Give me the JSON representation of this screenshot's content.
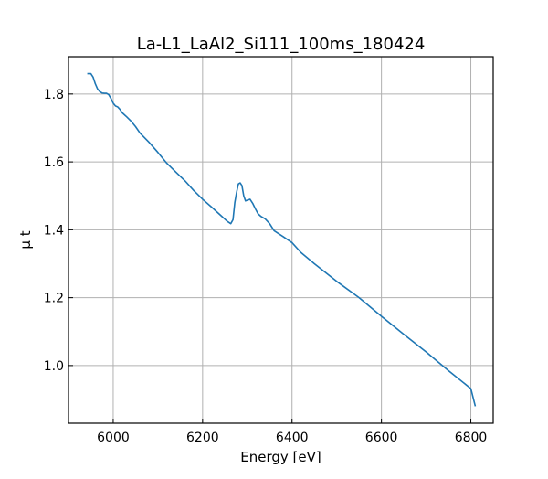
{
  "chart_data": {
    "type": "line",
    "title": "La-L1_LaAl2_Si111_100ms_180424",
    "xlabel": "Energy [eV]",
    "ylabel": "μ t",
    "xlim": [
      5900,
      6850
    ],
    "ylim": [
      0.83,
      1.91
    ],
    "xticks": [
      6000,
      6200,
      6400,
      6600,
      6800
    ],
    "yticks": [
      1.0,
      1.2,
      1.4,
      1.6,
      1.8
    ],
    "grid": true,
    "series": [
      {
        "color": "#1f77b4",
        "x": [
          5942,
          5950,
          5955,
          5960,
          5965,
          5970,
          5975,
          5980,
          5985,
          5990,
          5995,
          6000,
          6005,
          6010,
          6015,
          6020,
          6030,
          6040,
          6050,
          6060,
          6080,
          6100,
          6120,
          6140,
          6160,
          6180,
          6200,
          6220,
          6240,
          6255,
          6263,
          6268,
          6272,
          6276,
          6280,
          6284,
          6288,
          6292,
          6296,
          6300,
          6306,
          6312,
          6318,
          6324,
          6330,
          6340,
          6350,
          6360,
          6380,
          6400,
          6420,
          6450,
          6500,
          6550,
          6600,
          6650,
          6700,
          6750,
          6800,
          6810
        ],
        "values": [
          1.86,
          1.86,
          1.85,
          1.83,
          1.815,
          1.807,
          1.803,
          1.802,
          1.802,
          1.798,
          1.787,
          1.773,
          1.765,
          1.762,
          1.755,
          1.745,
          1.733,
          1.72,
          1.704,
          1.685,
          1.658,
          1.628,
          1.596,
          1.57,
          1.545,
          1.516,
          1.49,
          1.467,
          1.443,
          1.425,
          1.418,
          1.43,
          1.48,
          1.51,
          1.535,
          1.538,
          1.53,
          1.5,
          1.485,
          1.487,
          1.49,
          1.478,
          1.462,
          1.447,
          1.44,
          1.432,
          1.418,
          1.397,
          1.38,
          1.362,
          1.333,
          1.3,
          1.248,
          1.2,
          1.145,
          1.092,
          1.04,
          0.985,
          0.932,
          0.88
        ]
      }
    ]
  }
}
